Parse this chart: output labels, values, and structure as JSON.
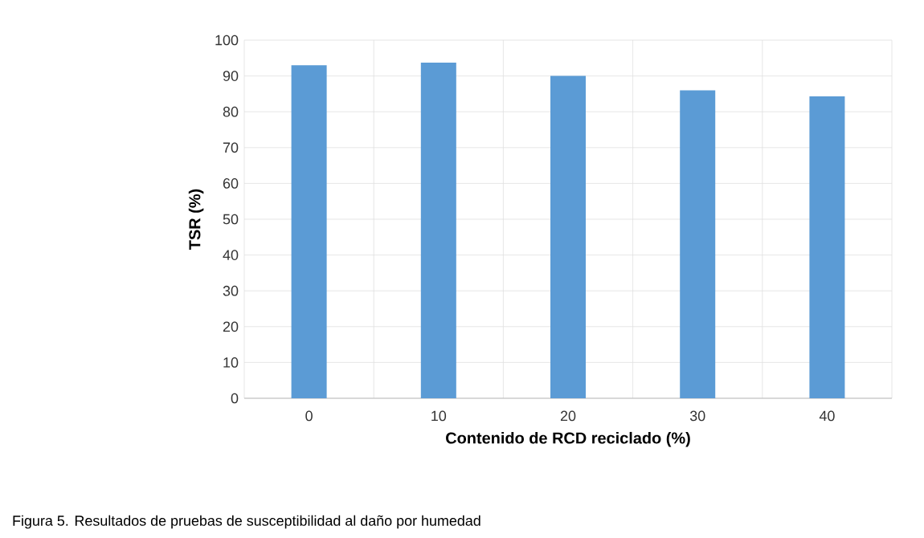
{
  "chart_data": {
    "type": "bar",
    "xlabel": "Contenido de RCD reciclado (%)",
    "ylabel": "TSR (%)",
    "categories": [
      "0",
      "10",
      "20",
      "30",
      "40"
    ],
    "values": [
      93,
      93.7,
      90,
      86,
      84.3
    ],
    "color": "#5b9bd5",
    "ylim": [
      0,
      100
    ],
    "yticks": [
      0,
      10,
      20,
      30,
      40,
      50,
      60,
      70,
      80,
      90,
      100
    ],
    "grid": true,
    "annotations": [
      "Figura 5. Resultados de pruebas de susceptibilidad al daño por humedad"
    ]
  }
}
